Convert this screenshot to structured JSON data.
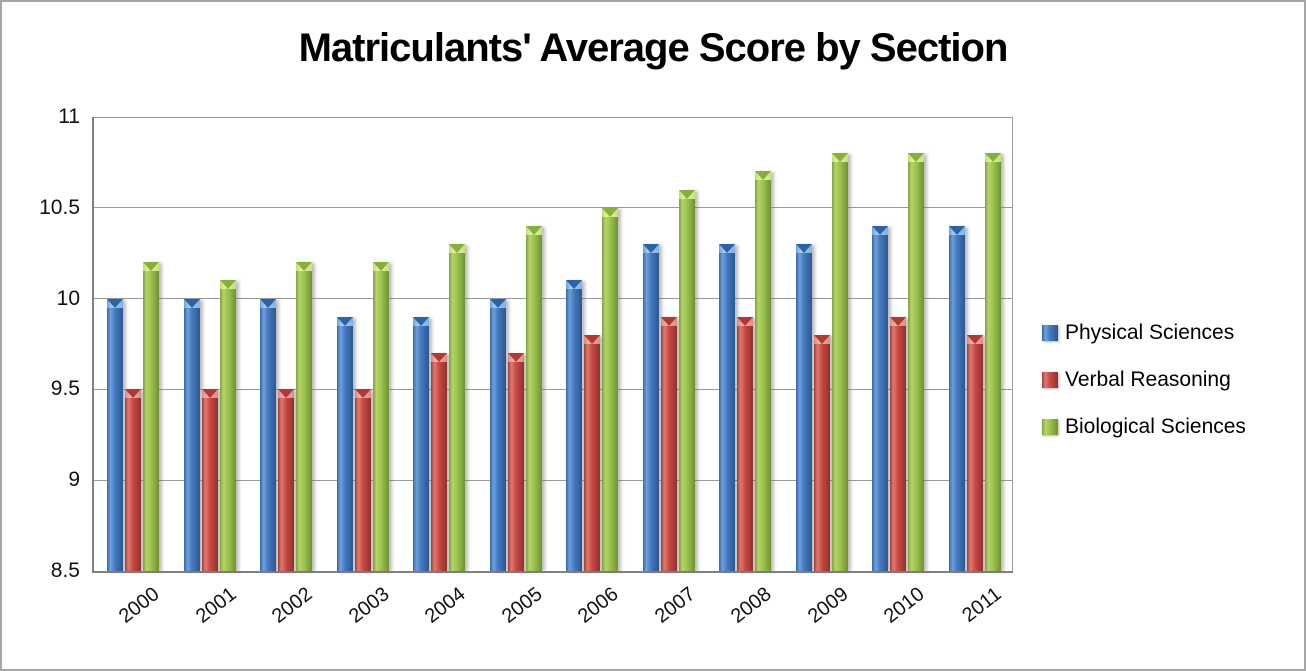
{
  "chart_data": {
    "type": "bar",
    "title": "Matriculants' Average Score by Section",
    "categories": [
      "2000",
      "2001",
      "2002",
      "2003",
      "2004",
      "2005",
      "2006",
      "2007",
      "2008",
      "2009",
      "2010",
      "2011"
    ],
    "series": [
      {
        "name": "Physical Sciences",
        "color": "#4478be",
        "values": [
          10.0,
          10.0,
          10.0,
          9.9,
          9.9,
          10.0,
          10.1,
          10.3,
          10.3,
          10.3,
          10.4,
          10.4
        ]
      },
      {
        "name": "Verbal Reasoning",
        "color": "#c94842",
        "values": [
          9.5,
          9.5,
          9.5,
          9.5,
          9.7,
          9.7,
          9.8,
          9.9,
          9.9,
          9.8,
          9.9,
          9.8
        ]
      },
      {
        "name": "Biological Sciences",
        "color": "#9cc14f",
        "values": [
          10.2,
          10.1,
          10.2,
          10.2,
          10.3,
          10.4,
          10.5,
          10.6,
          10.7,
          10.8,
          10.8,
          10.8
        ]
      }
    ],
    "ylim": [
      8.5,
      11
    ],
    "yticks": [
      11,
      10.5,
      10,
      9.5,
      9,
      8.5
    ],
    "grid": true,
    "legend_position": "right",
    "xlabel": "",
    "ylabel": "",
    "colors": {
      "axis": "#808080",
      "gridline": "#9a9a9a",
      "chart_border": "#a6a6a6",
      "background": "#ffffff"
    }
  }
}
